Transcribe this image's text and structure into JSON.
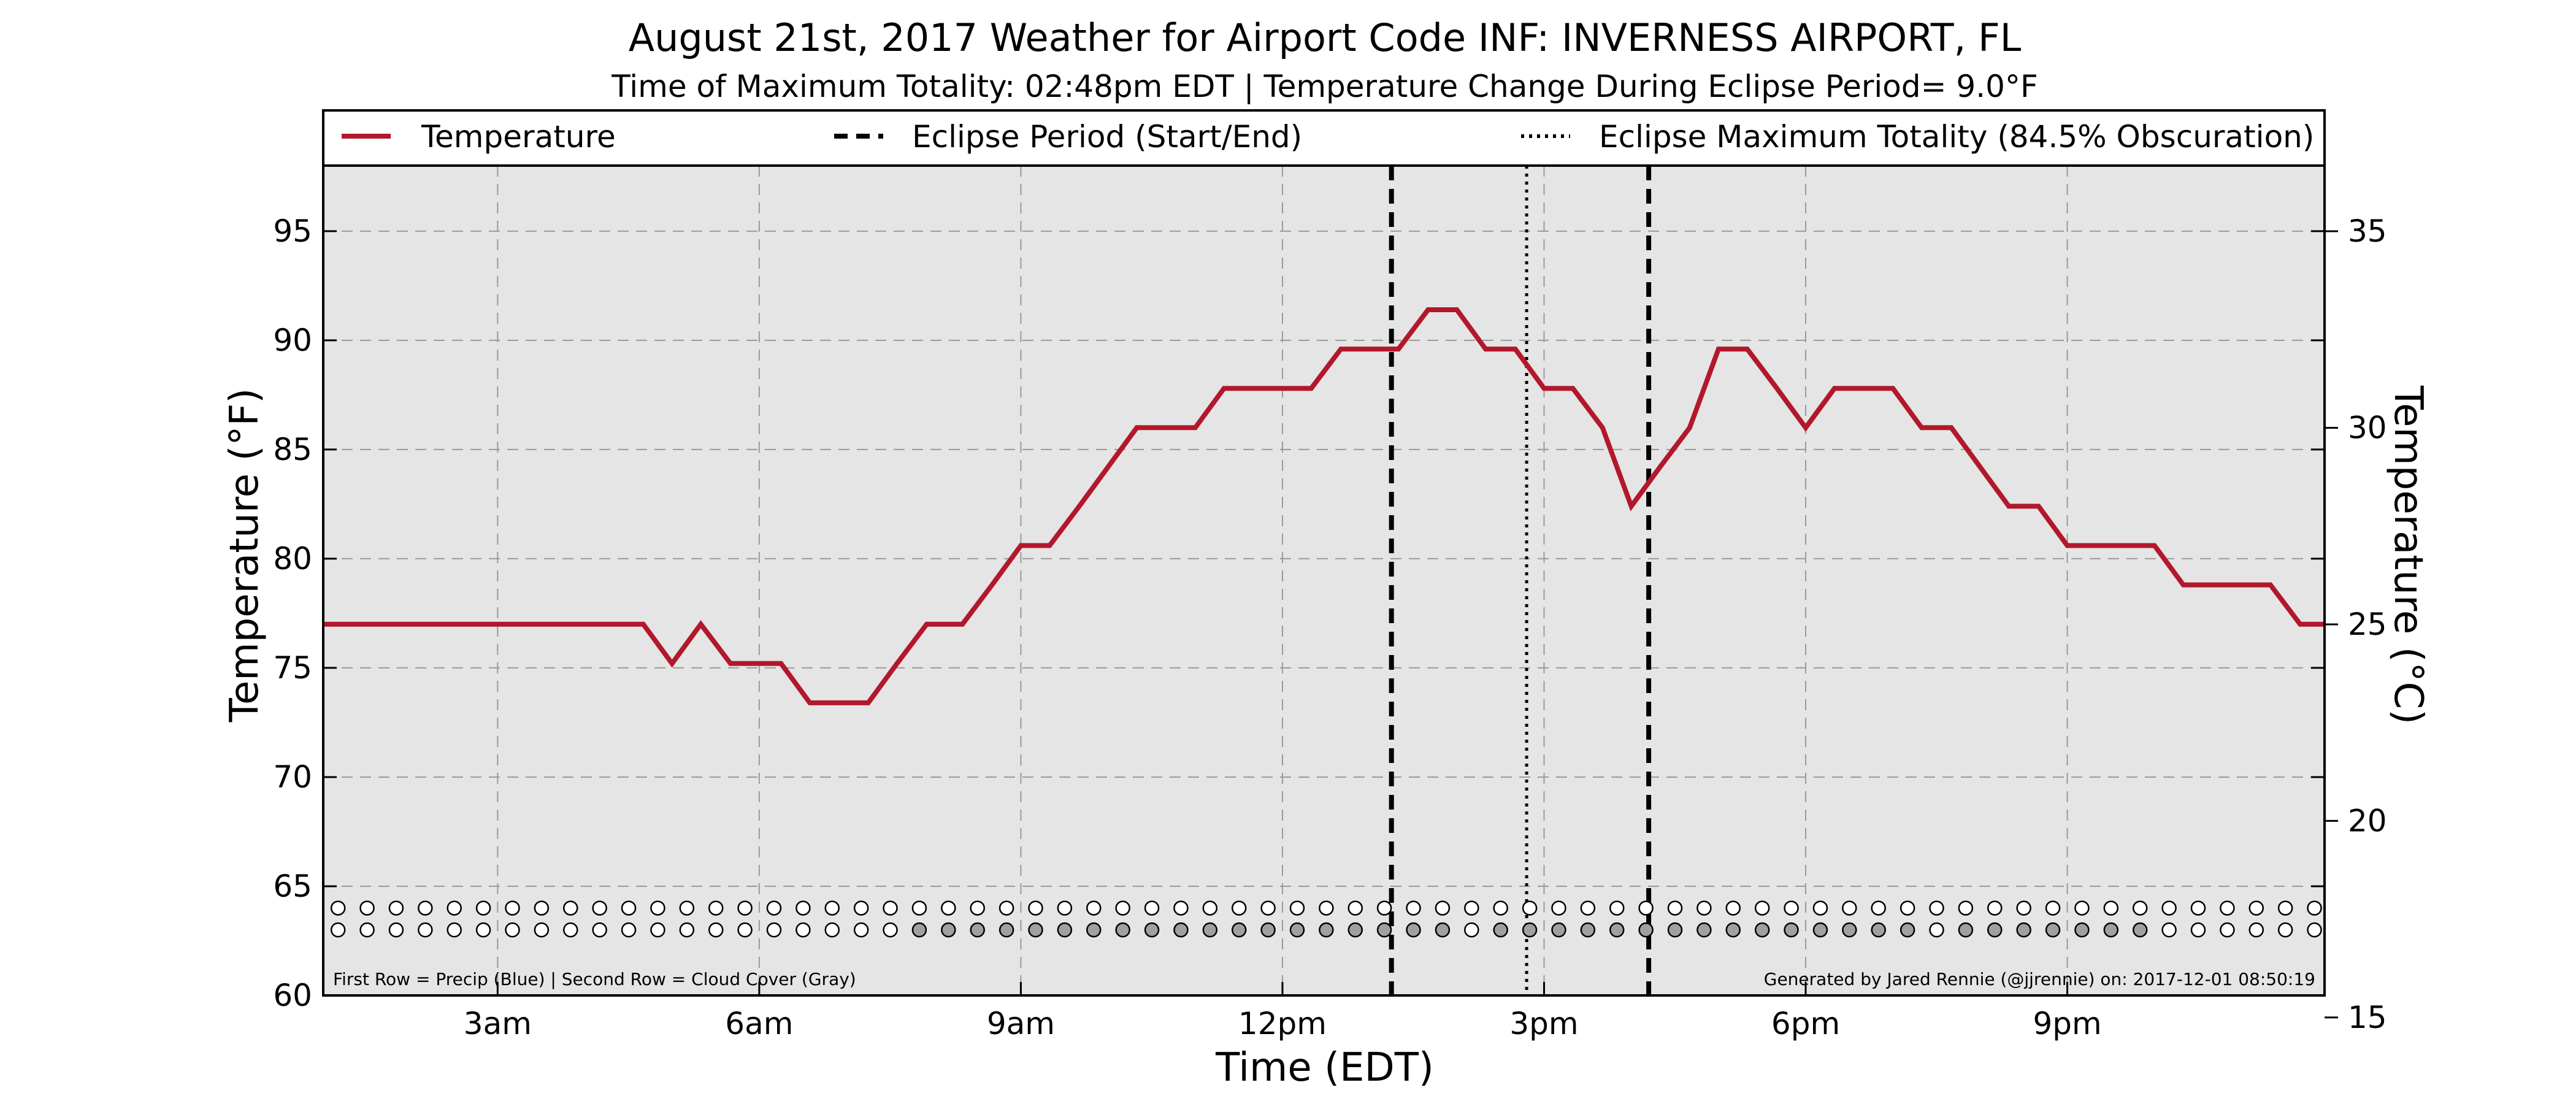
{
  "chart_data": {
    "type": "line",
    "title": "August 21st, 2017 Weather for Airport Code INF: INVERNESS AIRPORT, FL",
    "subtitle": "Time of Maximum Totality: 02:48pm EDT | Temperature Change During Eclipse Period= 9.0°F",
    "xlabel": "Time (EDT)",
    "ylabel": "Temperature (°F)",
    "ylabel_right": "Temperature (°C)",
    "xlim": [
      1.0,
      23.95
    ],
    "ylim": [
      60,
      98
    ],
    "ylim_right": [
      15.56,
      36.67
    ],
    "x_ticks": [
      {
        "x": 3,
        "label": "3am"
      },
      {
        "x": 6,
        "label": "6am"
      },
      {
        "x": 9,
        "label": "9am"
      },
      {
        "x": 12,
        "label": "12pm"
      },
      {
        "x": 15,
        "label": "3pm"
      },
      {
        "x": 18,
        "label": "6pm"
      },
      {
        "x": 21,
        "label": "9pm"
      }
    ],
    "y_ticks": [
      60,
      65,
      70,
      75,
      80,
      85,
      90,
      95
    ],
    "y_ticks_right": [
      15,
      20,
      25,
      30,
      35
    ],
    "grid": true,
    "legend_position": "top",
    "legend": [
      {
        "label": "Temperature",
        "style": "solid"
      },
      {
        "label": "Eclipse Period (Start/End)",
        "style": "dashed"
      },
      {
        "label": "Eclipse Maximum Totality (84.5% Obscuration)",
        "style": "dotted"
      }
    ],
    "series": [
      {
        "name": "Temperature",
        "color": "#b2182b",
        "x": [
          1.0,
          4.67,
          5.0,
          5.33,
          5.67,
          6.0,
          6.25,
          6.58,
          7.0,
          7.25,
          7.58,
          7.92,
          8.33,
          8.67,
          9.0,
          9.33,
          9.67,
          10.0,
          10.33,
          10.67,
          11.0,
          11.33,
          11.67,
          12.0,
          12.33,
          12.67,
          13.0,
          13.33,
          13.67,
          14.0,
          14.33,
          14.67,
          15.0,
          15.33,
          15.67,
          16.0,
          16.33,
          16.67,
          17.0,
          17.33,
          17.67,
          18.0,
          18.33,
          18.67,
          19.0,
          19.33,
          19.67,
          20.0,
          20.33,
          20.67,
          21.0,
          21.33,
          21.67,
          22.0,
          22.33,
          22.67,
          23.0,
          23.33,
          23.67,
          23.95
        ],
        "values": [
          77.0,
          77.0,
          75.2,
          77.0,
          75.2,
          75.2,
          75.2,
          73.4,
          73.4,
          73.4,
          75.2,
          77.0,
          77.0,
          78.8,
          80.6,
          80.6,
          82.4,
          84.2,
          86.0,
          86.0,
          86.0,
          87.8,
          87.8,
          87.8,
          87.8,
          89.6,
          89.6,
          89.6,
          91.4,
          91.4,
          89.6,
          89.6,
          87.8,
          87.8,
          86.0,
          82.4,
          84.2,
          86.0,
          89.6,
          89.6,
          87.8,
          86.0,
          87.8,
          87.8,
          87.8,
          86.0,
          86.0,
          84.2,
          82.4,
          82.4,
          80.6,
          80.6,
          80.6,
          80.6,
          78.8,
          78.8,
          78.8,
          78.8,
          77.0,
          77.0
        ]
      }
    ],
    "eclipse_start": 13.25,
    "eclipse_max": 14.8,
    "eclipse_end": 16.2,
    "precip_row": {
      "x_start": 1.17,
      "x_step": 0.3333,
      "count": 69,
      "filled_color": "#1f77b4",
      "filled": []
    },
    "cloud_row": {
      "x_start": 1.17,
      "x_step": 0.3333,
      "count": 69,
      "filled_color": "#a0a0a0",
      "filled": [
        20,
        21,
        22,
        23,
        24,
        25,
        26,
        27,
        28,
        29,
        30,
        31,
        32,
        33,
        34,
        35,
        36,
        37,
        38,
        40,
        41,
        42,
        43,
        44,
        45,
        46,
        47,
        48,
        49,
        50,
        51,
        52,
        53,
        54,
        56,
        57,
        58,
        59,
        60,
        61,
        62
      ]
    },
    "footnote_left": "First Row = Precip (Blue) | Second Row = Cloud Cover (Gray)",
    "footnote_right": "Generated by Jared Rennie (@jjrennie) on: 2017-12-01 08:50:19"
  }
}
